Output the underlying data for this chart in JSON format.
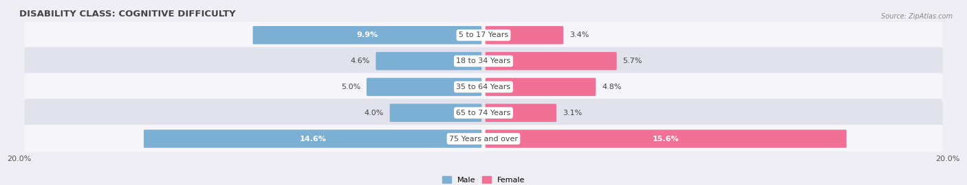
{
  "title": "DISABILITY CLASS: COGNITIVE DIFFICULTY",
  "source": "Source: ZipAtlas.com",
  "categories": [
    "5 to 17 Years",
    "18 to 34 Years",
    "35 to 64 Years",
    "65 to 74 Years",
    "75 Years and over"
  ],
  "male_values": [
    9.9,
    4.6,
    5.0,
    4.0,
    14.6
  ],
  "female_values": [
    3.4,
    5.7,
    4.8,
    3.1,
    15.6
  ],
  "male_color": "#7bafd4",
  "female_color": "#f07096",
  "male_label": "Male",
  "female_label": "Female",
  "axis_max": 20.0,
  "x_tick_label": "20.0%",
  "background_color": "#eeeef4",
  "row_bg_color": "#e2e2ec",
  "row_light_color": "#f5f5fa",
  "title_fontsize": 9.5,
  "label_fontsize": 8.0,
  "bar_height": 0.62
}
